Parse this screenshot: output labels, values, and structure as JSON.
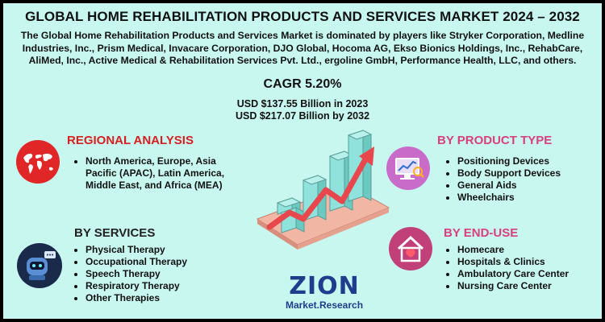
{
  "title": "GLOBAL HOME REHABILITATION PRODUCTS AND SERVICES MARKET 2024 – 2032",
  "intro": "The Global Home Rehabilitation Products and Services Market is dominated by players like Stryker Corporation, Medline Industries, Inc., Prism Medical, Invacare Corporation, DJO Global, Hocoma AG, Ekso Bionics Holdings, Inc., RehabCare, AliMed, Inc., Active Medical & Rehabilitation Services Pvt. Ltd., ergoline GmbH, Performance Health, LLC, and others.",
  "cagr": "CAGR 5.20%",
  "usd_2023": "USD $137.55 Billion in 2023",
  "usd_2032": "USD $217.07 Billion by 2032",
  "regional": {
    "heading": "REGIONAL ANALYSIS",
    "items": [
      "North America, Europe, Asia Pacific (APAC), Latin America, Middle East, and Africa (MEA)"
    ]
  },
  "services": {
    "heading": "BY SERVICES",
    "items": [
      "Physical Therapy",
      "Occupational Therapy",
      "Speech Therapy",
      "Respiratory Therapy",
      "Other Therapies"
    ]
  },
  "product": {
    "heading": "BY PRODUCT TYPE",
    "items": [
      "Positioning Devices",
      "Body Support Devices",
      "General Aids",
      "Wheelchairs"
    ]
  },
  "enduse": {
    "heading": "BY  END-USE",
    "items": [
      "Homecare",
      "Hospitals & Clinics",
      "Ambulatory Care Center",
      "Nursing Care Center"
    ]
  },
  "logo": {
    "brand": "ZION",
    "sub": "Market.Research"
  },
  "colors": {
    "background": "#c8f7f0",
    "heading_red": "#d61f1f",
    "heading_pink": "#d8407a",
    "bar_teal": "#8fe3dc",
    "arrow": "#e8474d",
    "logo_blue": "#1f3d8c"
  },
  "icons": [
    "world-map-icon",
    "robot-assistant-icon",
    "analytics-monitor-icon",
    "home-heart-icon",
    "growth-chart-illustration"
  ]
}
